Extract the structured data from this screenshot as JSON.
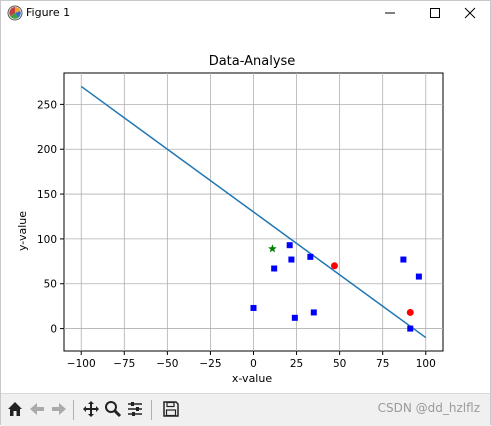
{
  "window": {
    "title": "Figure 1",
    "controls": {
      "minimize": "minimize",
      "maximize": "maximize",
      "close": "close"
    }
  },
  "chart_data": {
    "type": "scatter",
    "title": "Data-Analyse",
    "xlabel": "x-value",
    "ylabel": "y-value",
    "xlim": [
      -110,
      110
    ],
    "ylim": [
      -25,
      285
    ],
    "xticks": [
      -100,
      -75,
      -50,
      -25,
      0,
      25,
      50,
      75,
      100
    ],
    "yticks": [
      0,
      50,
      100,
      150,
      200,
      250
    ],
    "grid": true,
    "line": {
      "x": [
        -100,
        100
      ],
      "y": [
        270,
        -10
      ],
      "color": "#1f77b4"
    },
    "series": [
      {
        "marker": "square",
        "color": "#0000ff",
        "points": [
          [
            0,
            23
          ],
          [
            12,
            67
          ],
          [
            21,
            93
          ],
          [
            22,
            77
          ],
          [
            24,
            12
          ],
          [
            33,
            80
          ],
          [
            35,
            18
          ],
          [
            87,
            77
          ],
          [
            91,
            0
          ],
          [
            96,
            58
          ]
        ]
      },
      {
        "marker": "circle",
        "color": "#ff0000",
        "points": [
          [
            47,
            70
          ],
          [
            91,
            18
          ]
        ]
      },
      {
        "marker": "star",
        "color": "#008000",
        "points": [
          [
            11,
            89
          ]
        ]
      }
    ]
  },
  "toolbar": {
    "buttons": [
      "home-icon",
      "back-icon",
      "forward-icon",
      "pan-icon",
      "zoom-icon",
      "configure-icon",
      "save-icon"
    ]
  },
  "watermark": "CSDN @dd_hzlflz"
}
